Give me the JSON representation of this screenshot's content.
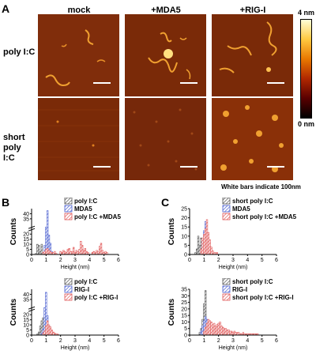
{
  "panel_labels": {
    "a": "A",
    "b": "B",
    "c": "C"
  },
  "afm": {
    "columns": [
      "mock",
      "+MDA5",
      "+RIG-I"
    ],
    "rows": [
      "poly I:C",
      "short poly I:C"
    ],
    "colorbar": {
      "max": "4 nm",
      "min": "0 nm",
      "colors": [
        "#000000",
        "#5a0000",
        "#b02800",
        "#e87800",
        "#ffc840",
        "#ffffd8"
      ]
    },
    "scale_note": "White bars indicate 100nm"
  },
  "chart_data": [
    {
      "id": "B-top",
      "type": "bar",
      "xlabel": "Height (nm)",
      "ylabel": "Counts",
      "xlim": [
        0,
        6
      ],
      "ylim": [
        0,
        45
      ],
      "xticks": [
        0,
        1,
        2,
        3,
        4,
        5,
        6
      ],
      "yticks": [
        0,
        5,
        10,
        15,
        20,
        35,
        40
      ],
      "axis_break": true,
      "legend_position": "top-right",
      "series": [
        {
          "name": "poly I:C",
          "color": "#555555",
          "x": [
            0.3,
            0.4,
            0.5,
            0.6,
            0.7,
            0.8,
            0.9,
            1.0,
            1.1,
            1.2
          ],
          "values": [
            1,
            10,
            9,
            3,
            10,
            2,
            1,
            0,
            0,
            0
          ]
        },
        {
          "name": "MDA5",
          "color": "#4a5fd0",
          "x": [
            0.8,
            0.9,
            1.0,
            1.1,
            1.2,
            1.3,
            1.4,
            1.5
          ],
          "values": [
            2,
            9,
            27,
            43,
            19,
            11,
            3,
            1
          ]
        },
        {
          "name": "poly I:C +MDA5",
          "color": "#e05555",
          "x": [
            0.8,
            0.9,
            1.0,
            1.1,
            1.2,
            1.3,
            1.4,
            1.5,
            1.6,
            1.7,
            2.0,
            2.1,
            2.2,
            2.3,
            2.4,
            2.5,
            2.6,
            2.7,
            2.8,
            2.9,
            3.0,
            3.1,
            3.2,
            3.3,
            3.4,
            3.5,
            3.6,
            3.7,
            3.8,
            3.9,
            4.2,
            4.3,
            4.4,
            4.5,
            4.6,
            4.7,
            4.8,
            4.9,
            5.0,
            5.1,
            5.2
          ],
          "values": [
            2,
            3,
            5,
            6,
            4,
            3,
            2,
            2,
            3,
            1,
            3,
            2,
            4,
            3,
            2,
            5,
            6,
            3,
            3,
            7,
            2,
            4,
            3,
            5,
            13,
            9,
            4,
            6,
            3,
            2,
            2,
            3,
            2,
            4,
            3,
            8,
            11,
            4,
            2,
            3,
            2
          ]
        }
      ]
    },
    {
      "id": "C-top",
      "type": "bar",
      "xlabel": "Height (nm)",
      "ylabel": "Counts",
      "xlim": [
        0,
        6
      ],
      "ylim": [
        0,
        25
      ],
      "xticks": [
        0,
        1,
        2,
        3,
        4,
        5,
        6
      ],
      "yticks": [
        0,
        5,
        10,
        15,
        20,
        25
      ],
      "legend_position": "top-right",
      "series": [
        {
          "name": "short poly I:C",
          "color": "#555555",
          "x": [
            0.4,
            0.5,
            0.6,
            0.7,
            0.8,
            0.9
          ],
          "values": [
            1,
            3,
            10,
            5,
            9,
            2
          ]
        },
        {
          "name": "MDA5",
          "color": "#4a5fd0",
          "x": [
            0.8,
            0.9,
            1.0,
            1.1,
            1.2,
            1.3,
            1.4,
            1.5,
            1.6
          ],
          "values": [
            2,
            7,
            13,
            18,
            12,
            6,
            3,
            1,
            1
          ]
        },
        {
          "name": "short poly I:C +MDA5",
          "color": "#e05555",
          "x": [
            0.8,
            0.9,
            1.0,
            1.1,
            1.2,
            1.3,
            1.4,
            1.5,
            1.6,
            1.7,
            1.8,
            1.9
          ],
          "values": [
            3,
            9,
            11,
            14,
            19,
            12,
            8,
            4,
            2,
            1,
            1,
            1
          ]
        }
      ]
    },
    {
      "id": "B-bottom",
      "type": "bar",
      "xlabel": "Height (nm)",
      "ylabel": "Counts",
      "xlim": [
        0,
        6
      ],
      "ylim": [
        0,
        45
      ],
      "xticks": [
        0,
        1,
        2,
        3,
        4,
        5,
        6
      ],
      "yticks": [
        0,
        5,
        10,
        15,
        20,
        35,
        40
      ],
      "axis_break": true,
      "legend_position": "top-right",
      "series": [
        {
          "name": "poly I:C",
          "color": "#555555",
          "x": [
            0.4,
            0.5,
            0.6,
            0.7,
            0.8,
            0.9,
            1.0
          ],
          "values": [
            1,
            3,
            9,
            14,
            17,
            4,
            1
          ]
        },
        {
          "name": "RIG-I",
          "color": "#4a5fd0",
          "x": [
            0.7,
            0.8,
            0.9,
            1.0,
            1.1,
            1.2,
            1.3
          ],
          "values": [
            2,
            6,
            27,
            42,
            19,
            9,
            2
          ]
        },
        {
          "name": "poly I:C +RIG-I",
          "color": "#e05555",
          "x": [
            0.8,
            0.9,
            1.0,
            1.1,
            1.2,
            1.3,
            1.4,
            1.5,
            1.6,
            1.7,
            1.8
          ],
          "values": [
            2,
            4,
            9,
            14,
            10,
            8,
            5,
            3,
            2,
            1,
            1
          ]
        }
      ]
    },
    {
      "id": "C-bottom",
      "type": "bar",
      "xlabel": "Height (nm)",
      "ylabel": "Counts",
      "xlim": [
        0,
        6
      ],
      "ylim": [
        0,
        35
      ],
      "xticks": [
        0,
        1,
        2,
        3,
        4,
        5,
        6
      ],
      "yticks": [
        0,
        5,
        10,
        15,
        20,
        25,
        30,
        35
      ],
      "legend_position": "top-right",
      "series": [
        {
          "name": "short poly I:C",
          "color": "#555555",
          "x": [
            0.7,
            0.8,
            0.9,
            1.0,
            1.1,
            1.2
          ],
          "values": [
            2,
            5,
            12,
            24,
            34,
            6
          ]
        },
        {
          "name": "RIG-I",
          "color": "#4a5fd0",
          "x": [
            0.8,
            0.9,
            1.0,
            1.1,
            1.2,
            1.3,
            1.4,
            1.5,
            1.6
          ],
          "values": [
            3,
            7,
            11,
            14,
            12,
            9,
            6,
            3,
            1
          ]
        },
        {
          "name": "short poly I:C +RIG-I",
          "color": "#e05555",
          "x": [
            1.0,
            1.1,
            1.2,
            1.3,
            1.4,
            1.5,
            1.6,
            1.7,
            1.8,
            1.9,
            2.0,
            2.1,
            2.2,
            2.3,
            2.4,
            2.5,
            2.6,
            2.7,
            2.8,
            2.9,
            3.0,
            3.1,
            3.2,
            3.3,
            3.4,
            3.5,
            3.6,
            3.7,
            3.8,
            3.9,
            4.0,
            4.1,
            4.2,
            4.3,
            4.4,
            4.5,
            4.6,
            4.7
          ],
          "values": [
            3,
            6,
            9,
            12,
            11,
            10,
            8,
            9,
            7,
            8,
            9,
            10,
            7,
            6,
            5,
            5,
            4,
            4,
            3,
            3,
            2,
            3,
            2,
            2,
            2,
            1,
            1,
            2,
            1,
            1,
            1,
            1,
            1,
            1,
            1,
            1,
            1,
            1
          ]
        }
      ]
    }
  ]
}
